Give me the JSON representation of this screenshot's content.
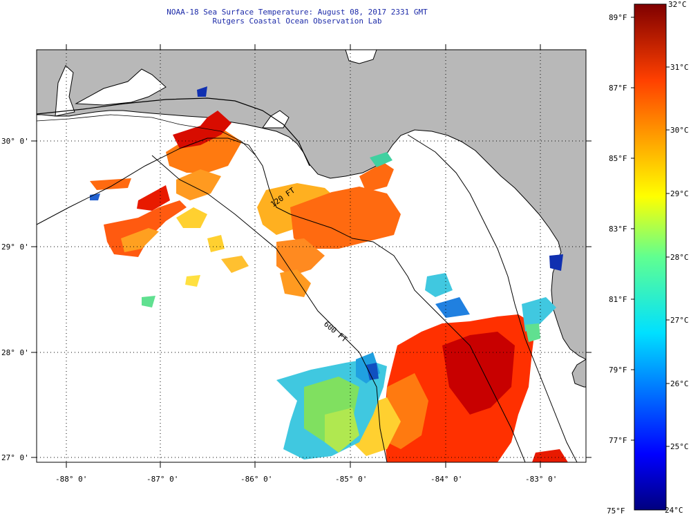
{
  "header": {
    "title_line1": "NOAA-18 Sea Surface Temperature:  August 08, 2017 2331 GMT",
    "title_line2": "Rutgers Coastal Ocean Observation Lab"
  },
  "axes": {
    "lon_labels": [
      "-88° 0'",
      "-87° 0'",
      "-86° 0'",
      "-85° 0'",
      "-84° 0'",
      "-83° 0'"
    ],
    "lat_labels": [
      "30° 0'",
      "29° 0'",
      "28° 0'",
      "27° 0'"
    ]
  },
  "contours": {
    "label_120": "120 FT",
    "label_600": "600 FT"
  },
  "colorbar": {
    "celsius_labels": [
      "32°C",
      "31°C",
      "30°C",
      "29°C",
      "28°C",
      "27°C",
      "26°C",
      "25°C",
      "24°C"
    ],
    "fahrenheit_labels": [
      "89°F",
      "87°F",
      "85°F",
      "83°F",
      "81°F",
      "79°F",
      "77°F",
      "75°F"
    ],
    "min_c": 24,
    "max_c": 32
  },
  "colors": {
    "land": "#b8b8b8",
    "water_nodata": "#ffffff",
    "title_text": "#1c2aa8"
  }
}
